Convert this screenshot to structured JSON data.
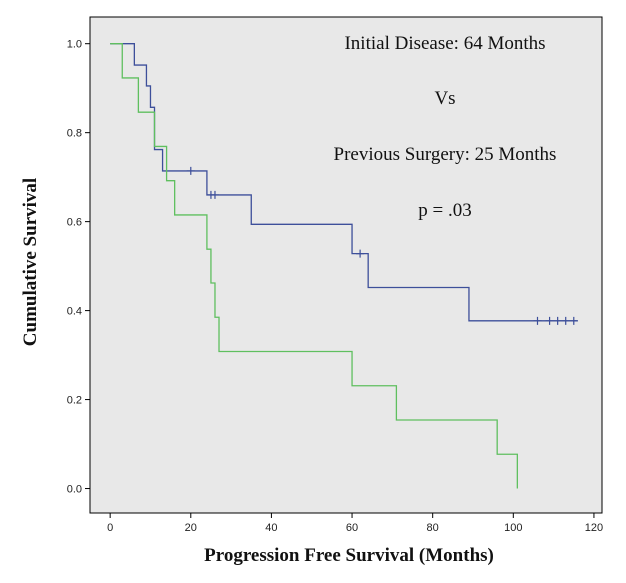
{
  "chart_data": {
    "type": "line",
    "subtype": "kaplan-meier",
    "xlabel": "Progression Free Survival (Months)",
    "ylabel": "Cumulative Survival",
    "xlim": [
      -5,
      122
    ],
    "ylim": [
      -0.055,
      1.06
    ],
    "xticks": [
      0,
      20,
      40,
      60,
      80,
      100,
      120
    ],
    "yticks": [
      0.0,
      0.2,
      0.4,
      0.6,
      0.8,
      1.0
    ],
    "ytick_labels": [
      "0.0",
      "0.2",
      "0.4",
      "0.6",
      "0.8",
      "1.0"
    ],
    "grid": false,
    "background": "#e8e8e8",
    "annotations": [
      "Initial Disease: 64 Months",
      "Vs",
      "Previous Surgery: 25 Months",
      "p = .03"
    ],
    "series": [
      {
        "color": "#3d4f9a",
        "steps": [
          [
            0,
            1.0
          ],
          [
            6,
            0.952
          ],
          [
            9,
            0.905
          ],
          [
            10,
            0.857
          ],
          [
            11,
            0.762
          ],
          [
            13,
            0.714
          ],
          [
            24,
            0.66
          ],
          [
            35,
            0.594
          ],
          [
            60,
            0.528
          ],
          [
            64,
            0.452
          ],
          [
            89,
            0.377
          ],
          [
            116,
            0.377
          ]
        ],
        "censored": [
          [
            20,
            0.714
          ],
          [
            25,
            0.66
          ],
          [
            26,
            0.66
          ],
          [
            62,
            0.528
          ],
          [
            106,
            0.377
          ],
          [
            109,
            0.377
          ],
          [
            111,
            0.377
          ],
          [
            113,
            0.377
          ],
          [
            115,
            0.377
          ]
        ]
      },
      {
        "color": "#5fbf5f",
        "steps": [
          [
            0,
            1.0
          ],
          [
            3,
            0.923
          ],
          [
            7,
            0.846
          ],
          [
            11,
            0.769
          ],
          [
            14,
            0.692
          ],
          [
            16,
            0.615
          ],
          [
            24,
            0.538
          ],
          [
            25,
            0.462
          ],
          [
            26,
            0.385
          ],
          [
            27,
            0.308
          ],
          [
            60,
            0.231
          ],
          [
            71,
            0.154
          ],
          [
            96,
            0.077
          ],
          [
            101,
            0.0
          ]
        ],
        "censored": []
      }
    ]
  }
}
